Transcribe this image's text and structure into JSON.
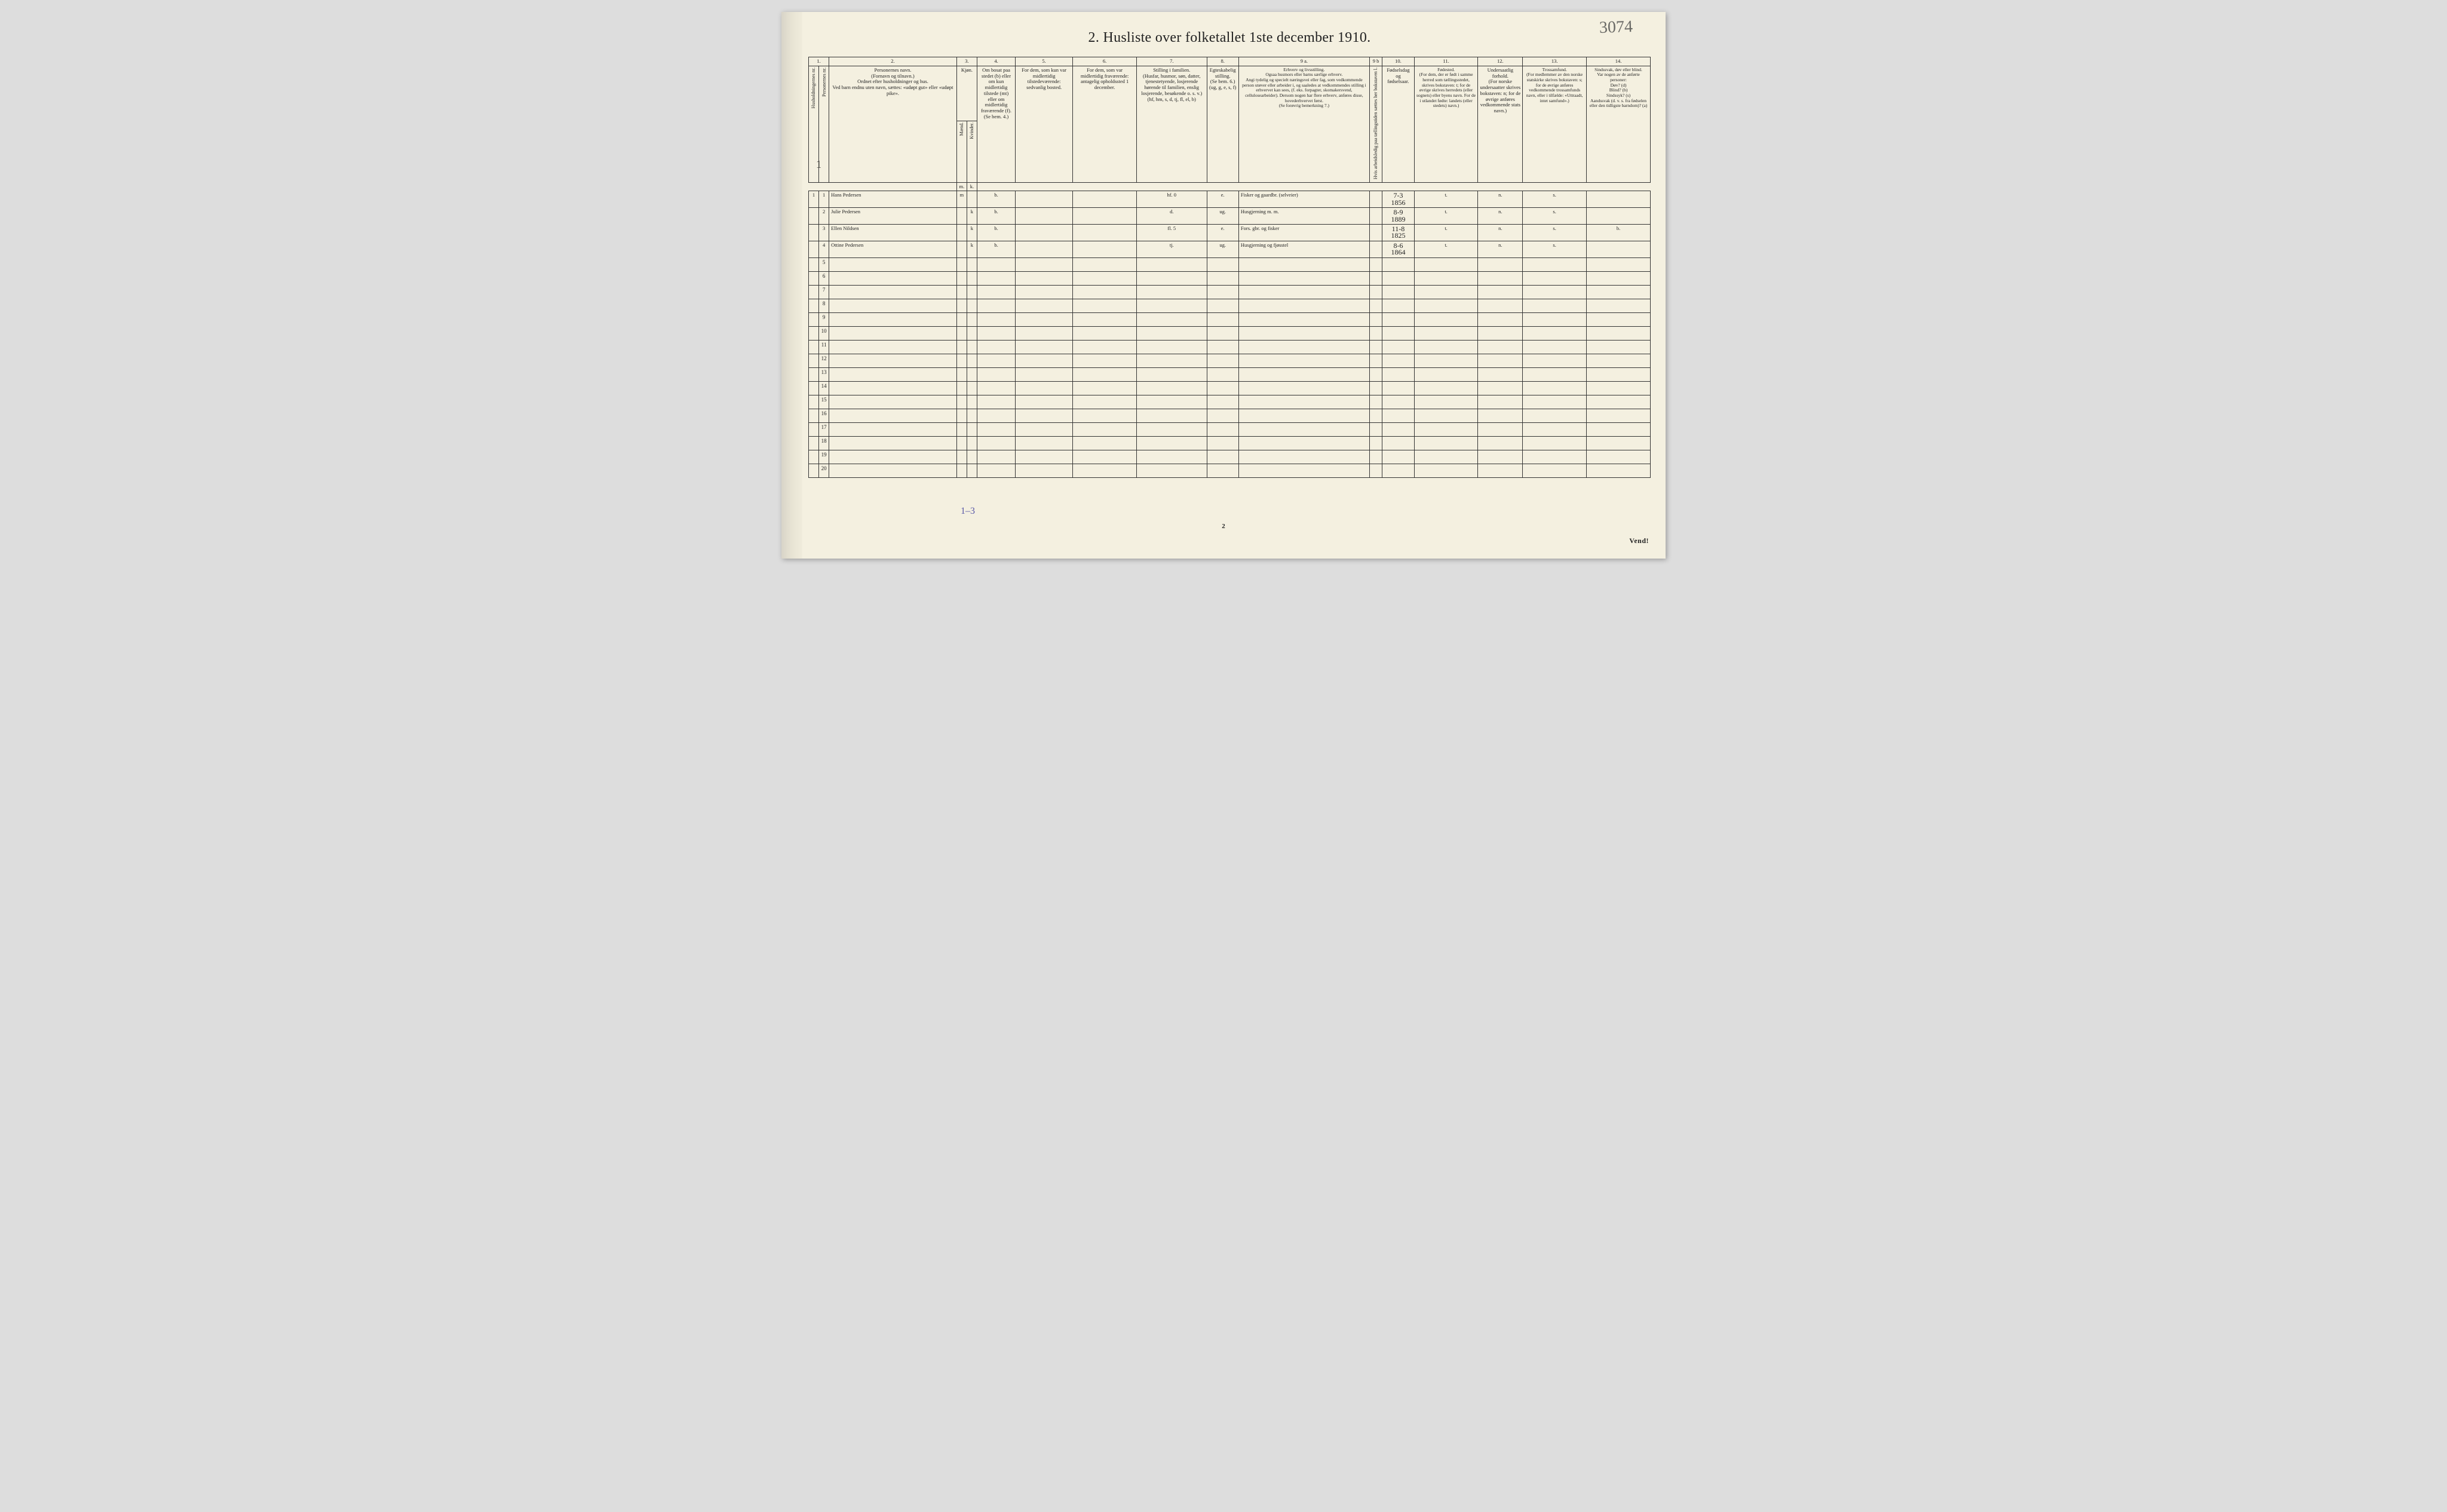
{
  "title": "2.  Husliste over folketallet 1ste december 1910.",
  "topHandwritten": "3074",
  "leftMargin": "1",
  "footerNote": "1–3",
  "pageNumber": "2",
  "vend": "Vend!",
  "columnNumbers": [
    "1.",
    "2.",
    "3.",
    "4.",
    "5.",
    "6.",
    "7.",
    "8.",
    "9 a.",
    "9 b",
    "10.",
    "11.",
    "12.",
    "13.",
    "14."
  ],
  "headers": {
    "c1a": "Husholdningernes nr.",
    "c1b": "Personernes nr.",
    "c2": "Personernes navn.\n(Fornavn og tilnavn.)\nOrdnet efter husholdninger og hus.\nVed barn endnu uten navn, sættes: «udøpt gut» eller «udøpt pike».",
    "c3": "Kjøn.",
    "c3m": "Mænd.",
    "c3k": "Kvinder.",
    "c4": "Om bosat paa stedet (b) eller om kun midlertidig tilstede (mt) eller om midlertidig fraværende (f).\n(Se bem. 4.)",
    "c5": "For dem, som kun var midlertidig tilstedeværende:\nsedvanlig bosted.",
    "c6": "For dem, som var midlertidig fraværende:\nantagelig opholdssted 1 december.",
    "c7": "Stilling i familien.\n(Husfar, husmor, søn, datter, tjenestetyende, losjerende hørende til familien, enslig losjerende, besøkende o. s. v.)\n(hf, hm, s, d, tj, fl, el, b)",
    "c8": "Egteskabelig stilling.\n(Se bem. 6.)\n(ug, g, e, s, f)",
    "c9a": "Erhverv og livsstilling.\nOgsaa husmors eller barns særlige erhverv.\nAngi tydelig og specielt næringsvei eller fag, som vedkommende person utøver eller arbeider i, og saaledes at vedkommendes stilling i erhvervet kan sees, (f. eks. forpagter, skomakersvend, cellulosearbeider). Dersom nogen har flere erhverv, anføres disse, hovederhvervet først.\n(Se forøvrig bemerkning 7.)",
    "c9b": "Hvis arbeidsledig paa tællingstiden sættes her bokstaven l.",
    "c10": "Fødselsdag og fødselsaar.",
    "c11": "Fødested.\n(For dem, der er født i samme herred som tællingsstedet, skrives bokstaven: t; for de øvrige skrives herredets (eller sognets) eller byens navn. For de i utlandet fødte: landets (eller stedets) navn.)",
    "c12": "Undersaatlig forhold.\n(For norske undersaatter skrives bokstaven: n; for de øvrige anføres vedkommende stats navn.)",
    "c13": "Trossamfund.\n(For medlemmer av den norske statskirke skrives bokstaven: s; for de øvrige anføres vedkommende trossamfunds navn, eller i tilfælde: «Uttraadt, intet samfund».)",
    "c14": "Sindssvak, døv eller blind.\nVar nogen av de anførte personer:\nDøv?  (d)\nBlind?  (b)\nSindssyk?  (s)\nAandssvak (d. v. s. fra fødselen eller den tidligste barndom)?  (a)"
  },
  "rows": [
    {
      "hh": "1",
      "pn": "1",
      "name": "Hans Pedersen",
      "sex": "m",
      "bosat": "b.",
      "fam": "hf.",
      "famExtra": "0",
      "egt": "e.",
      "erhverv": "Fisker og gaardbr. (selveier)",
      "fod1": "7-3",
      "fod2": "1856",
      "fsted": "t.",
      "und": "n.",
      "tro": "s.",
      "sind": ""
    },
    {
      "hh": "",
      "pn": "2",
      "name": "Julie Pedersen",
      "sex": "k",
      "bosat": "b.",
      "fam": "d.",
      "famExtra": "",
      "egt": "ug.",
      "erhverv": "Husgjerning m. m.",
      "fod1": "8-9",
      "fod2": "1889",
      "fsted": "t.",
      "und": "n.",
      "tro": "s.",
      "sind": ""
    },
    {
      "hh": "",
      "pn": "3",
      "name": "Ellen Nildsen",
      "sex": "k",
      "bosat": "b.",
      "fam": "fl.",
      "famExtra": "5",
      "egt": "e.",
      "erhverv": "Fors. gbr. og fisker",
      "erhvervRed": true,
      "fod1": "11-8",
      "fod2": "1825",
      "fsted": "t.",
      "und": "n.",
      "tro": "s.",
      "sind": "b."
    },
    {
      "hh": "",
      "pn": "4",
      "name": "Ottine Pedersen",
      "sex": "k",
      "bosat": "b.",
      "fam": "tj.",
      "famExtra": "",
      "egt": "ug.",
      "erhverv": "Husgjerning og fjøsstel",
      "fod1": "8-6",
      "fod2": "1864",
      "fsted": "t.",
      "und": "n.",
      "tro": "s.",
      "sind": ""
    }
  ],
  "emptyRows": [
    "5",
    "6",
    "7",
    "8",
    "9",
    "10",
    "11",
    "12",
    "13",
    "14",
    "15",
    "16",
    "17",
    "18",
    "19",
    "20"
  ]
}
